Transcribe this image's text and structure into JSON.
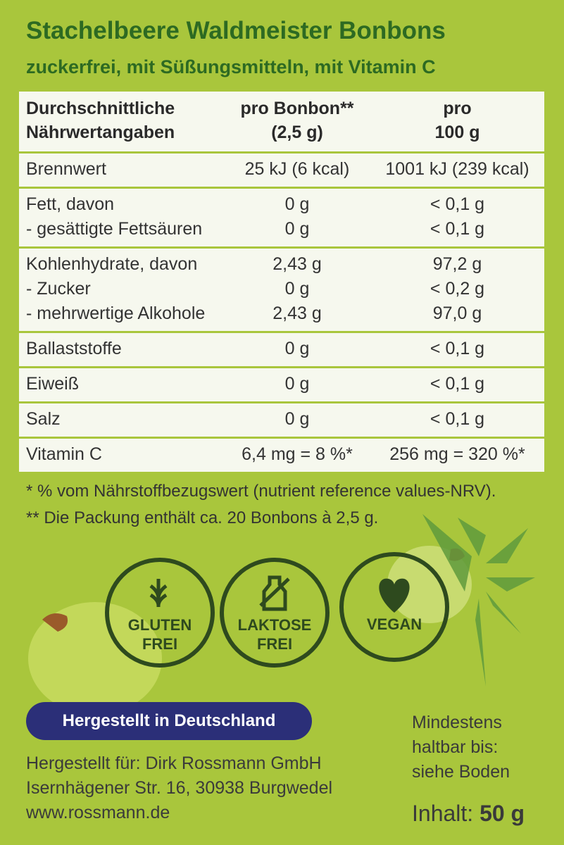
{
  "header": {
    "title": "Stachelbeere Waldmeister Bonbons",
    "subtitle": "zuckerfrei, mit Süßungsmitteln, mit Vitamin C"
  },
  "table": {
    "columns": [
      [
        "Durchschnittliche",
        "Nährwertangaben"
      ],
      [
        "pro Bonbon**",
        "(2,5 g)"
      ],
      [
        "pro",
        "100 g"
      ]
    ],
    "groups": [
      [
        [
          "Brennwert",
          "25 kJ (6 kcal)",
          "1001 kJ (239 kcal)"
        ]
      ],
      [
        [
          "Fett, davon",
          "0 g",
          "< 0,1 g"
        ],
        [
          "- gesättigte Fettsäuren",
          "0 g",
          "< 0,1 g"
        ]
      ],
      [
        [
          "Kohlenhydrate, davon",
          "2,43 g",
          "97,2 g"
        ],
        [
          "- Zucker",
          "0 g",
          "< 0,2 g"
        ],
        [
          "- mehrwertige Alkohole",
          "2,43 g",
          "97,0 g"
        ]
      ],
      [
        [
          "Ballaststoffe",
          "0 g",
          "< 0,1 g"
        ]
      ],
      [
        [
          "Eiweiß",
          "0 g",
          "< 0,1 g"
        ]
      ],
      [
        [
          "Salz",
          "0 g",
          "< 0,1 g"
        ]
      ],
      [
        [
          "Vitamin C",
          "6,4 mg = 8 %*",
          "256 mg = 320 %*"
        ]
      ]
    ]
  },
  "footnotes": [
    "* % vom Nährstoffbezugswert (nutrient reference values-NRV).",
    "** Die Packung enthält ca. 20 Bonbons à 2,5 g."
  ],
  "badges": [
    [
      "GLUTEN",
      "FREI"
    ],
    [
      "LAKTOSE",
      "FREI"
    ],
    [
      "VEGAN"
    ]
  ],
  "origin": "Hergestellt in Deutschland",
  "manufacturer": [
    "Hergestellt für: Dirk Rossmann GmbH",
    "Isernhägener Str. 16, 30938 Burgwedel",
    "www.rossmann.de"
  ],
  "best_before": [
    "Mindestens",
    "haltbar bis:",
    "siehe Boden"
  ],
  "content": {
    "label": "Inhalt:",
    "value": "50 g"
  }
}
